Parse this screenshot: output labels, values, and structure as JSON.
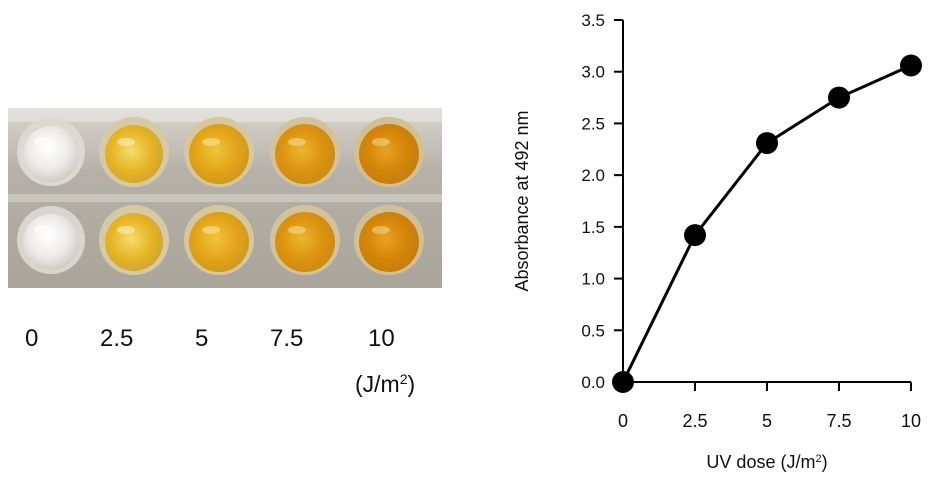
{
  "panel_left": {
    "dose_labels": [
      "0",
      "2.5",
      "5",
      "7.5",
      "10"
    ],
    "unit_label": {
      "prefix": "(J/m",
      "superscript": "2",
      "suffix": ")"
    },
    "colors": {
      "plate_background": "#b7b2a8",
      "plate_highlight": "#ebe9e5",
      "well_clear": "#f1f0ec",
      "well_yellow_light": "#e8ba2d",
      "well_yellow_mid": "#e3a81b",
      "well_orange": "#dc920f",
      "well_orange_deep": "#d38408"
    }
  },
  "chart_data": {
    "type": "line",
    "x": [
      0,
      2.5,
      5,
      7.5,
      10
    ],
    "y": [
      0.0,
      1.42,
      2.31,
      2.75,
      3.06
    ],
    "x_ticks": [
      "0",
      "2.5",
      "5",
      "7.5",
      "10"
    ],
    "y_ticks": [
      "0.0",
      "0.5",
      "1.0",
      "1.5",
      "2.0",
      "2.5",
      "3.0",
      "3.5"
    ],
    "xlim": [
      0,
      10
    ],
    "ylim": [
      0,
      3.5
    ],
    "title": "",
    "xlabel": {
      "prefix": "UV dose (J/m",
      "superscript": "2",
      "suffix": ")"
    },
    "ylabel": "Absorbance at 492 nm",
    "marker": "filled-circle",
    "grid": false,
    "legend": "none",
    "line_color": "#000000"
  }
}
